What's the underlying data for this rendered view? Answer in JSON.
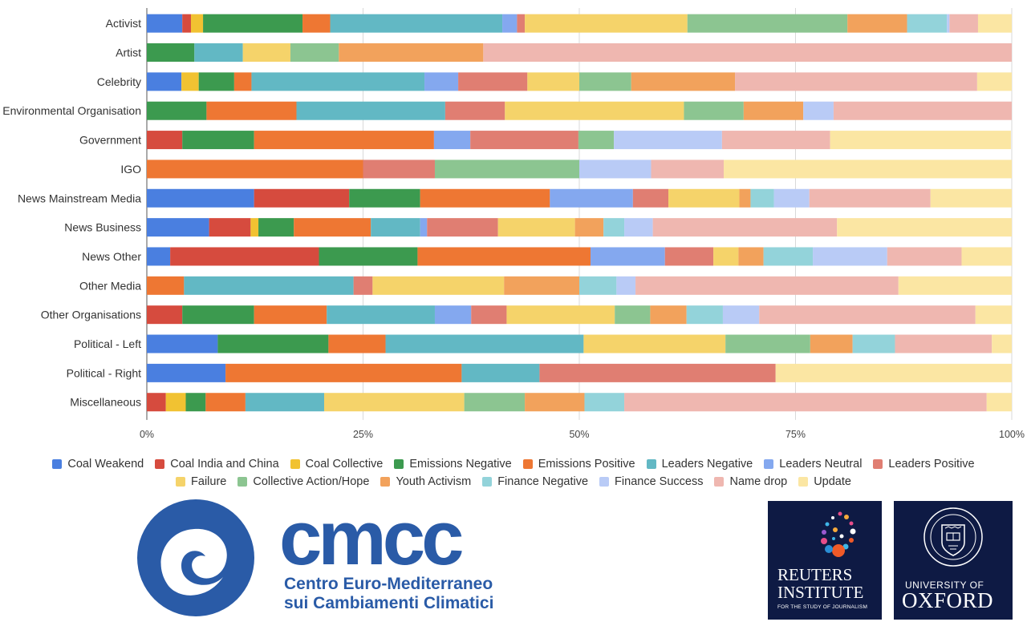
{
  "chart_data": {
    "type": "bar",
    "orientation": "horizontal",
    "stacked": true,
    "percent_stacked": true,
    "xlim": [
      0,
      100
    ],
    "x_ticks": [
      "0%",
      "25%",
      "50%",
      "75%",
      "100%"
    ],
    "grid": "vertical",
    "legend_position": "bottom",
    "categories": [
      "Activist",
      "Artist",
      "Celebrity",
      "Environmental Organisation",
      "Government",
      "IGO",
      "News Mainstream Media",
      "News Business",
      "News Other",
      "Other Media",
      "Other Organisations",
      "Political - Left",
      "Political - Right",
      "Miscellaneous"
    ],
    "series": [
      {
        "name": "Coal Weakend",
        "color": "#4a7fe0",
        "values": [
          4.1,
          0,
          4.0,
          0,
          0,
          0,
          12.4,
          7.2,
          2.7,
          0,
          0,
          8.2,
          9.1,
          0
        ]
      },
      {
        "name": "Coal India and China",
        "color": "#d64b3e",
        "values": [
          1.0,
          0,
          0,
          0,
          4.1,
          0,
          11.0,
          4.8,
          17.2,
          0,
          4.1,
          0,
          0,
          2.2
        ]
      },
      {
        "name": "Coal Collective",
        "color": "#f1c232",
        "values": [
          1.4,
          0,
          2.0,
          0,
          0,
          0,
          0,
          0.9,
          0,
          0,
          0,
          0,
          0,
          2.3
        ]
      },
      {
        "name": "Emissions Negative",
        "color": "#3c9a4f",
        "values": [
          11.5,
          5.5,
          4.1,
          6.9,
          8.3,
          0,
          8.2,
          4.1,
          11.4,
          0,
          8.3,
          12.8,
          0,
          2.3
        ]
      },
      {
        "name": "Emissions Positive",
        "color": "#ee7733",
        "values": [
          3.2,
          0,
          2.0,
          10.4,
          20.8,
          25.0,
          15.0,
          8.9,
          20.0,
          4.3,
          8.4,
          6.6,
          27.3,
          4.6
        ]
      },
      {
        "name": "Leaders Negative",
        "color": "#62b8c4",
        "values": [
          19.9,
          5.6,
          20.0,
          17.2,
          0,
          0,
          0,
          5.7,
          0,
          19.6,
          12.5,
          22.9,
          9.0,
          9.1
        ]
      },
      {
        "name": "Leaders Neutral",
        "color": "#84a8ef",
        "values": [
          1.7,
          0,
          3.9,
          0,
          4.2,
          0,
          9.6,
          0.8,
          8.6,
          0,
          4.2,
          0,
          0,
          0
        ]
      },
      {
        "name": "Leaders Positive",
        "color": "#e07e72",
        "values": [
          0.9,
          0,
          8.0,
          6.9,
          12.5,
          8.3,
          4.1,
          8.2,
          5.6,
          2.2,
          4.1,
          0,
          27.3,
          0
        ]
      },
      {
        "name": "Failure",
        "color": "#f5d36a",
        "values": [
          18.8,
          5.5,
          6.0,
          20.7,
          0,
          0,
          8.2,
          8.9,
          2.9,
          15.2,
          12.5,
          16.4,
          0,
          16.2
        ]
      },
      {
        "name": "Collective Action/Hope",
        "color": "#8cc591",
        "values": [
          18.5,
          5.6,
          6.0,
          6.9,
          4.1,
          16.7,
          0,
          0,
          0,
          0,
          4.1,
          9.8,
          0,
          7.0
        ]
      },
      {
        "name": "Youth Activism",
        "color": "#f2a25c",
        "values": [
          6.9,
          16.7,
          12.0,
          6.9,
          0,
          0,
          1.3,
          3.3,
          2.9,
          8.7,
          4.2,
          4.9,
          0,
          6.9
        ]
      },
      {
        "name": "Finance Negative",
        "color": "#93d3da",
        "values": [
          4.6,
          0,
          0,
          0,
          0,
          0,
          2.7,
          2.4,
          5.7,
          4.3,
          4.2,
          4.9,
          0,
          4.6
        ]
      },
      {
        "name": "Finance Success",
        "color": "#b9cbf6",
        "values": [
          0.3,
          0,
          0,
          3.5,
          12.5,
          8.3,
          4.1,
          3.3,
          8.6,
          2.2,
          4.2,
          0,
          0,
          0
        ]
      },
      {
        "name": "Name drop",
        "color": "#efb7b0",
        "values": [
          3.3,
          61.1,
          28.0,
          20.6,
          12.5,
          8.4,
          14.0,
          21.3,
          8.6,
          30.4,
          25.0,
          11.2,
          0,
          41.9
        ]
      },
      {
        "name": "Update",
        "color": "#fbe6a3",
        "values": [
          3.9,
          0,
          4.0,
          0,
          20.9,
          33.3,
          9.4,
          20.2,
          5.8,
          13.1,
          4.2,
          2.3,
          27.3,
          2.9
        ]
      }
    ]
  },
  "logos": {
    "cmcc": {
      "word": "cmcc",
      "line1": "Centro Euro-Mediterraneo",
      "line2": "sui Cambiamenti Climatici",
      "color": "#2a5ba7"
    },
    "reuters": {
      "line1": "REUTERS",
      "line2": "INSTITUTE",
      "line3": "FOR THE STUDY OF JOURNALISM",
      "color": "#0e1a44"
    },
    "oxford": {
      "line1": "UNIVERSITY OF",
      "line2": "OXFORD",
      "color": "#0e1a44"
    }
  }
}
